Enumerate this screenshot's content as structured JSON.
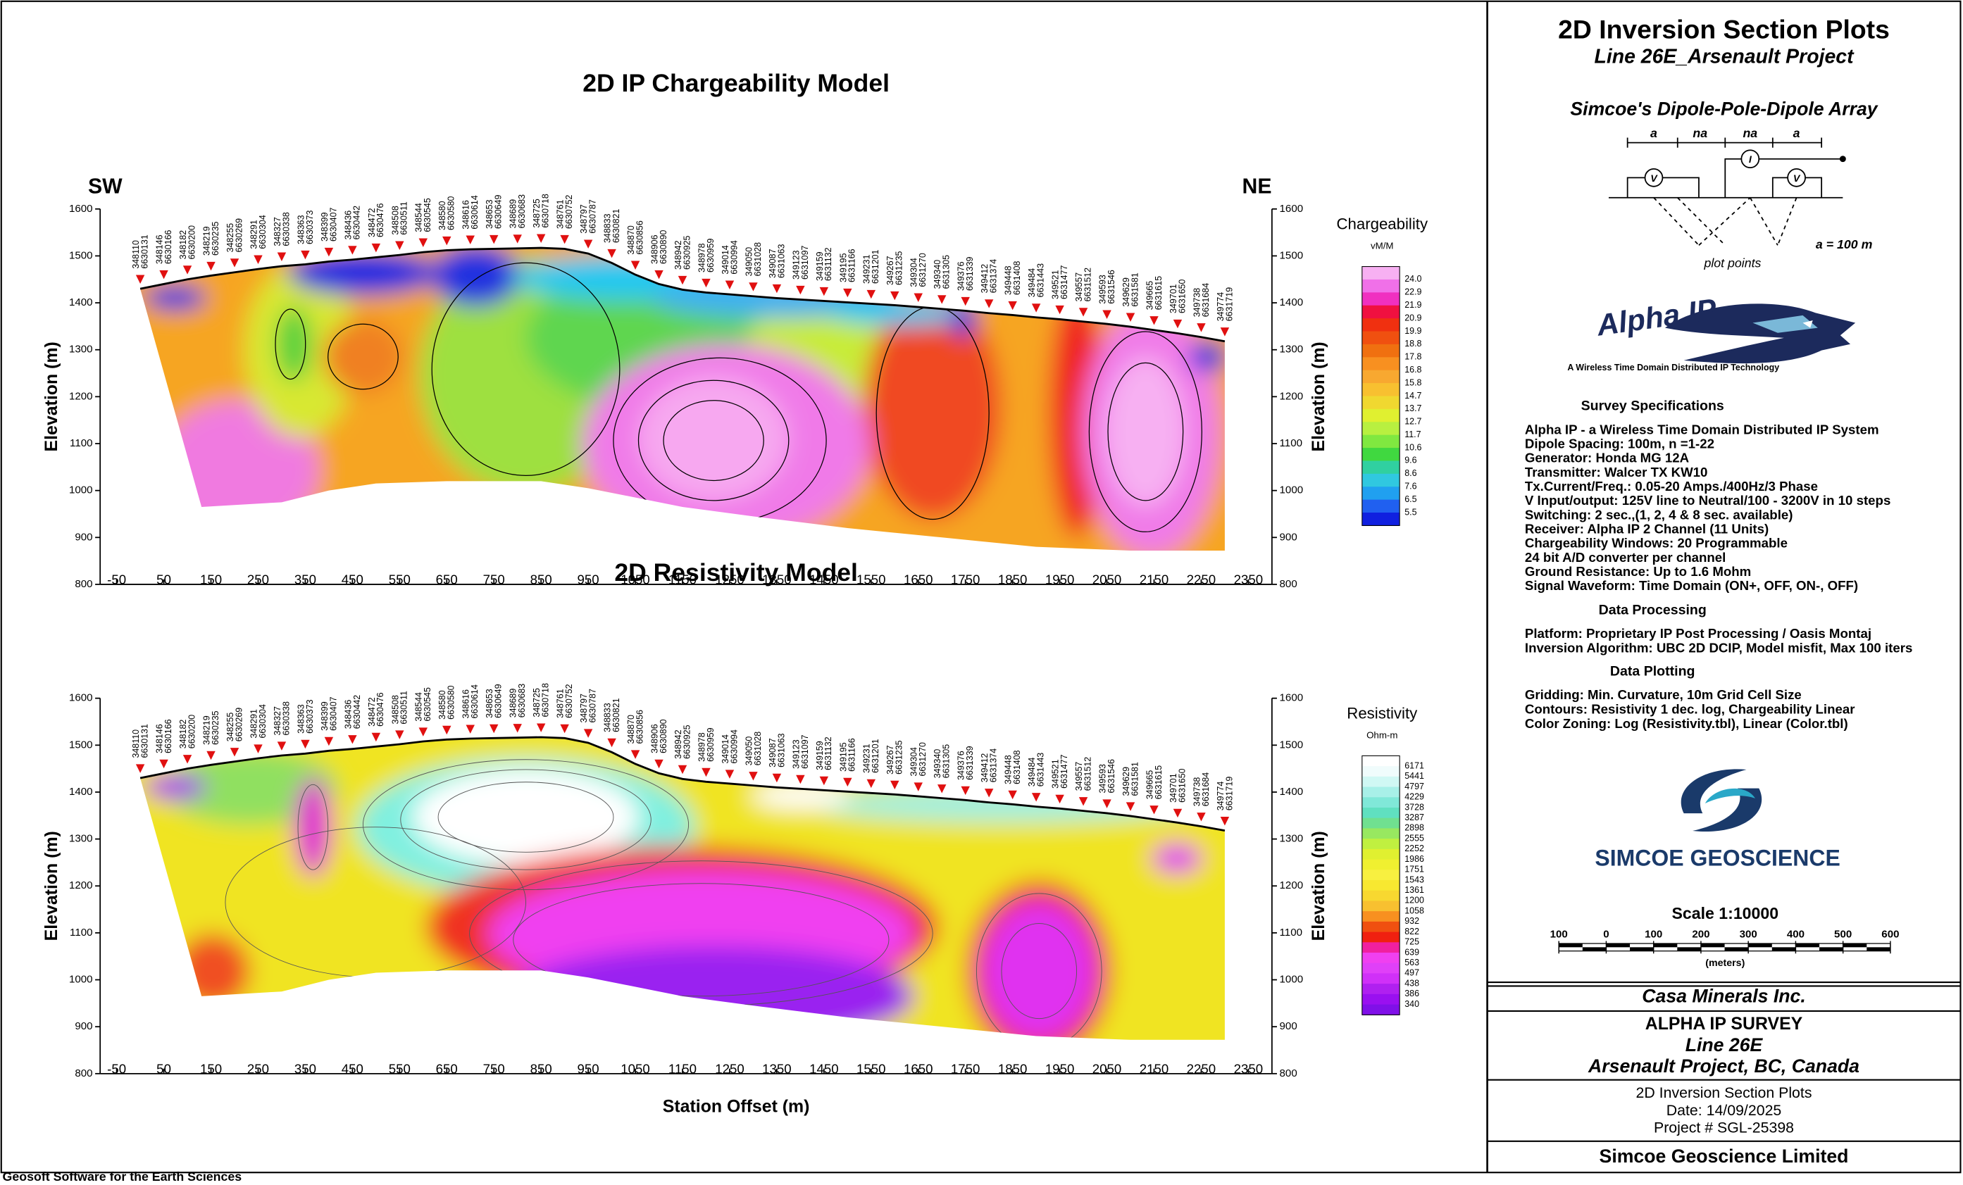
{
  "chart_data": [
    {
      "type": "section",
      "title": "2D IP Chargeability Model",
      "corner_labels": [
        "SW",
        "NE"
      ],
      "ylabel": "Elevation (m)",
      "xlim": [
        -85,
        2400
      ],
      "ylim": [
        800,
        1600
      ],
      "xticks": [
        -50,
        50,
        150,
        250,
        350,
        450,
        550,
        650,
        750,
        850,
        950,
        1050,
        1150,
        1250,
        1350,
        1450,
        1550,
        1650,
        1750,
        1850,
        1950,
        2050,
        2150,
        2250,
        2350
      ],
      "yticks": [
        800,
        900,
        1000,
        1100,
        1200,
        1300,
        1400,
        1500,
        1600
      ],
      "colorbar": {
        "title": "Chargeability",
        "unit": "vM/M",
        "labels": [
          {
            "value": 24,
            "label": "24.0"
          },
          22.9,
          21.9,
          20.9,
          19.9,
          18.8,
          17.8,
          16.8,
          15.8,
          14.7,
          13.7,
          12.7,
          11.7,
          10.6,
          9.6,
          8.6,
          7.6,
          6.5,
          5.5
        ],
        "colors": [
          "#f7b0f2",
          "#f070e8",
          "#f030c0",
          "#f01040",
          "#f03010",
          "#f05010",
          "#f07010",
          "#f89020",
          "#f8a830",
          "#f8c030",
          "#f0d830",
          "#e0f030",
          "#b8f040",
          "#80e840",
          "#40d840",
          "#30d0a0",
          "#30c8e0",
          "#20a0f0",
          "#2060f0",
          "#1020e0"
        ]
      }
    },
    {
      "type": "section",
      "title": "2D Resistivity Model",
      "ylabel": "Elevation (m)",
      "xlabel": "Station Offset (m)",
      "xlim": [
        -85,
        2400
      ],
      "ylim": [
        800,
        1600
      ],
      "xticks": [
        -50,
        50,
        150,
        250,
        350,
        450,
        550,
        650,
        750,
        850,
        950,
        1050,
        1150,
        1250,
        1350,
        1450,
        1550,
        1650,
        1750,
        1850,
        1950,
        2050,
        2150,
        2250,
        2350
      ],
      "yticks": [
        800,
        900,
        1000,
        1100,
        1200,
        1300,
        1400,
        1500,
        1600
      ],
      "colorbar": {
        "title": "Resistivity",
        "unit": "Ohm-m",
        "labels": [
          6171,
          5441,
          4797,
          4229,
          3728,
          3287,
          2898,
          2555,
          2252,
          1986,
          1751,
          1543,
          1361,
          1200,
          1058,
          932,
          822,
          725,
          639,
          563,
          497,
          438,
          386,
          340
        ],
        "colors": [
          "#ffffff",
          "#f0fcfc",
          "#d0f8f4",
          "#a8f0e8",
          "#80e8d8",
          "#60e0c0",
          "#70e090",
          "#98e860",
          "#c0f040",
          "#e0f030",
          "#f0f030",
          "#f8f040",
          "#f8e830",
          "#f8d830",
          "#f8c030",
          "#f89020",
          "#f05010",
          "#f02010",
          "#f020a0",
          "#f040f0",
          "#e040f8",
          "#d030f8",
          "#b020f0",
          "#9a10f0",
          "#8010e8"
        ]
      }
    }
  ],
  "stations": {
    "easting": [
      "348110",
      "348146",
      "348182",
      "348219",
      "348255",
      "348291",
      "348327",
      "348363",
      "348399",
      "348436",
      "348472",
      "348508",
      "348544",
      "348580",
      "348616",
      "348653",
      "348689",
      "348725",
      "348761",
      "348797",
      "348833",
      "348870",
      "348906",
      "348942",
      "348978",
      "349014",
      "349050",
      "349087",
      "349123",
      "349159",
      "349195",
      "349231",
      "349267",
      "349304",
      "349340",
      "349376",
      "349412",
      "349448",
      "349484",
      "349521",
      "349557",
      "349593",
      "349629",
      "349665",
      "349701",
      "349738",
      "349774"
    ],
    "northing": [
      "6630131",
      "6630166",
      "6630200",
      "6630235",
      "6630269",
      "6630304",
      "6630338",
      "6630373",
      "6630407",
      "6630442",
      "6630476",
      "6630511",
      "6630545",
      "6630580",
      "6630614",
      "6630649",
      "6630683",
      "6630718",
      "6630752",
      "6630787",
      "6630821",
      "6630856",
      "6630890",
      "6630925",
      "6630959",
      "6630994",
      "6631028",
      "6631063",
      "6631097",
      "6631132",
      "6631166",
      "6631201",
      "6631235",
      "6631270",
      "6631305",
      "6631339",
      "6631374",
      "6631408",
      "6631443",
      "6631477",
      "6631512",
      "6631546",
      "6631581",
      "6631615",
      "6631650",
      "6631684",
      "6631719"
    ],
    "offset": [
      0,
      50,
      100,
      150,
      200,
      250,
      300,
      350,
      400,
      450,
      500,
      550,
      600,
      650,
      700,
      750,
      800,
      850,
      900,
      950,
      1000,
      1050,
      1100,
      1150,
      1200,
      1250,
      1300,
      1350,
      1400,
      1450,
      1500,
      1550,
      1600,
      1650,
      1700,
      1750,
      1800,
      1850,
      1900,
      1950,
      2000,
      2050,
      2100,
      2150,
      2200,
      2250,
      2300
    ],
    "elevation": [
      1430,
      1440,
      1450,
      1458,
      1465,
      1472,
      1478,
      1482,
      1488,
      1492,
      1497,
      1502,
      1508,
      1512,
      1514,
      1515,
      1516,
      1517,
      1515,
      1505,
      1485,
      1460,
      1440,
      1428,
      1422,
      1418,
      1414,
      1410,
      1407,
      1404,
      1401,
      1398,
      1395,
      1391,
      1387,
      1383,
      1378,
      1374,
      1369,
      1365,
      1360,
      1355,
      1349,
      1342,
      1335,
      1327,
      1318
    ]
  },
  "model_bottom": {
    "offset": [
      2300,
      2100,
      1900,
      1700,
      1500,
      1300,
      1150,
      1000,
      950,
      850,
      650,
      500,
      400,
      300,
      130
    ],
    "elevation": [
      872,
      872,
      880,
      900,
      920,
      945,
      965,
      995,
      1005,
      1020,
      1020,
      1015,
      1000,
      975,
      965
    ]
  },
  "panel": {
    "title": "2D Inversion Section Plots",
    "subtitle": "Line 26E_Arsenault Project",
    "array_title": "Simcoe's Dipole-Pole-Dipole Array",
    "array_labels": [
      "a",
      "na",
      "na",
      "a"
    ],
    "array_meters": [
      "V",
      "I",
      "V"
    ],
    "array_note": "a = 100 m",
    "plot_points": "plot points",
    "logo_name": "Alpha IP",
    "logo_tagline": "A Wireless Time Domain Distributed IP Technology",
    "survey_heading": "Survey Specifications",
    "survey_lines": [
      "Alpha IP - a Wireless  Time Domain Distributed IP System",
      "Dipole Spacing: 100m, n =1-22",
      "Generator: Honda MG 12A",
      "Transmitter: Walcer TX KW10",
      "Tx.Current/Freq.: 0.05-20 Amps./400Hz/3 Phase",
      "V Input/output: 125V line to Neutral/100 - 3200V in 10 steps",
      "Switching: 2 sec.,(1, 2, 4 & 8 sec. available)",
      "Receiver: Alpha IP 2 Channel (11 Units)",
      "Chargeability Windows: 20 Programmable",
      "24 bit A/D converter per channel",
      "Ground Resistance: Up to 1.6 Mohm",
      "Signal Waveform: Time Domain (ON+, OFF, ON-, OFF)"
    ],
    "processing_heading": "Data Processing",
    "processing_lines": [
      "Platform: Proprietary IP Post Processing / Oasis Montaj",
      "Inversion Algorithm: UBC 2D DCIP, Model misfit, Max 100 iters"
    ],
    "plotting_heading": "Data Plotting",
    "plotting_lines": [
      "Gridding: Min. Curvature, 10m Grid Cell Size",
      "Contours: Resistivity 1 dec. log, Chargeability Linear",
      "Color Zoning: Log (Resistivity.tbl), Linear (Color.tbl)"
    ],
    "company_logo": "SIMCOE GEOSCIENCE",
    "scale_title": "Scale 1:10000",
    "scale_ticks": [
      {
        "value": -100,
        "label": "100"
      },
      0,
      100,
      200,
      300,
      400,
      500,
      600
    ],
    "scale_unit": "(meters)",
    "client": "Casa Minerals Inc.",
    "survey": "ALPHA IP SURVEY",
    "line": "Line 26E",
    "project": "Arsenault Project, BC, Canada",
    "doc_title": "2D Inversion Section Plots",
    "date": "Date: 14/09/2025",
    "project_no": "Project # SGL-25398",
    "footer_company": "Simcoe Geoscience Limited"
  },
  "footer": "Geosoft Software for the Earth Sciences"
}
